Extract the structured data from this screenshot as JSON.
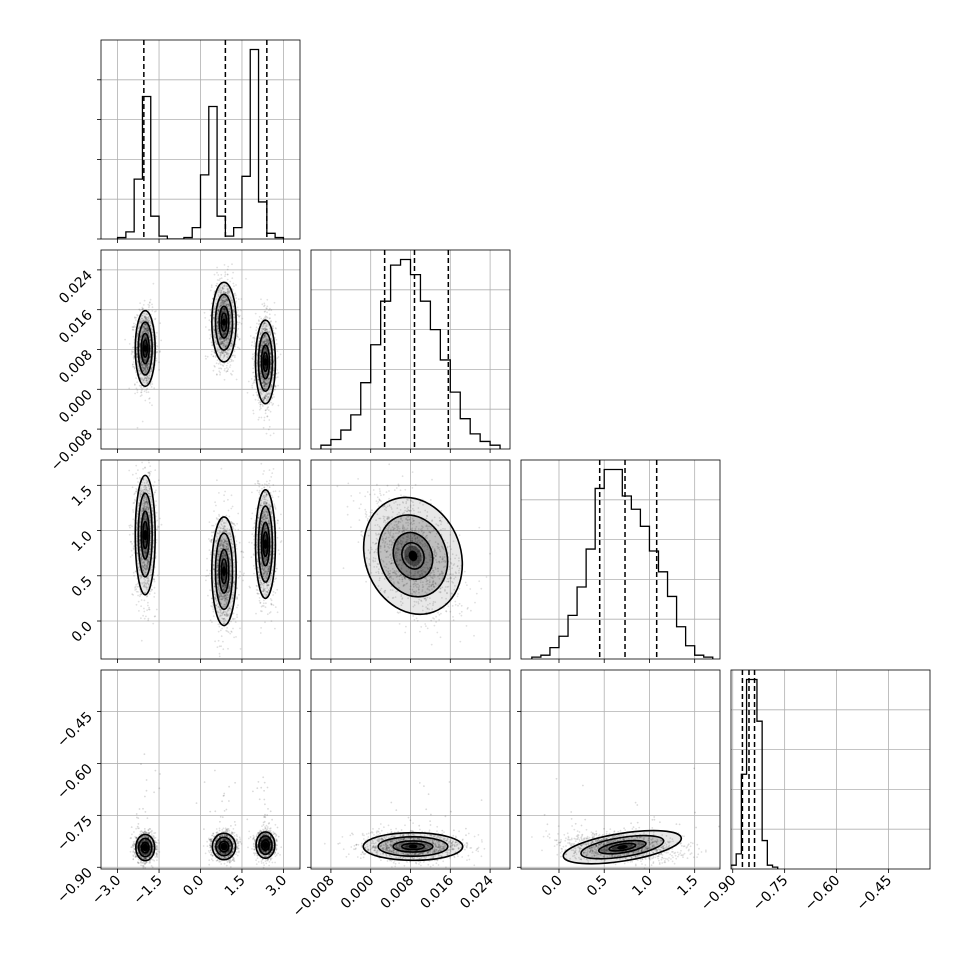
{
  "chart_data": {
    "type": "corner",
    "title": "",
    "grid": true,
    "variables": [
      {
        "label": "",
        "range": [
          -3.6,
          3.6
        ],
        "ticks": [
          -3.0,
          -1.5,
          0.0,
          1.5,
          3.0
        ],
        "tick_labels": [
          "−3.0",
          "−1.5",
          "0.0",
          "1.5",
          "3.0"
        ]
      },
      {
        "label": "",
        "range": [
          -0.012,
          0.028
        ],
        "ticks": [
          -0.008,
          0.0,
          0.008,
          0.016,
          0.024
        ],
        "tick_labels": [
          "−0.008",
          "0.000",
          "0.008",
          "0.016",
          "0.024"
        ]
      },
      {
        "label": "",
        "range": [
          -0.42,
          1.78
        ],
        "ticks": [
          0.0,
          0.5,
          1.0,
          1.5
        ],
        "tick_labels": [
          "0.0",
          "0.5",
          "1.0",
          "1.5"
        ]
      },
      {
        "label": "",
        "range": [
          -0.905,
          -0.33
        ],
        "ticks": [
          -0.9,
          -0.75,
          -0.6,
          -0.45
        ],
        "tick_labels": [
          "−0.90",
          "−0.75",
          "−0.60",
          "−0.45"
        ]
      }
    ],
    "histograms": [
      {
        "bin_edges": [
          -3.0,
          -2.7,
          -2.4,
          -2.1,
          -1.8,
          -1.5,
          -1.2,
          -0.9,
          -0.6,
          -0.3,
          0.0,
          0.3,
          0.6,
          0.9,
          1.2,
          1.5,
          1.8,
          2.1,
          2.4,
          2.7,
          3.0
        ],
        "counts": [
          0.01,
          0.05,
          0.42,
          1.0,
          0.16,
          0.02,
          0.0,
          0.0,
          0.01,
          0.08,
          0.45,
          0.93,
          0.16,
          0.02,
          0.08,
          0.44,
          1.33,
          0.26,
          0.04,
          0.01
        ],
        "quantiles": [
          -2.05,
          0.9,
          2.4
        ]
      },
      {
        "bin_edges": [
          -0.01,
          -0.008,
          -0.006,
          -0.004,
          -0.002,
          0.0,
          0.002,
          0.004,
          0.006,
          0.008,
          0.01,
          0.012,
          0.014,
          0.016,
          0.018,
          0.02,
          0.022,
          0.024,
          0.026
        ],
        "counts": [
          0.02,
          0.05,
          0.1,
          0.18,
          0.35,
          0.55,
          0.78,
          0.97,
          1.0,
          0.92,
          0.78,
          0.63,
          0.47,
          0.3,
          0.16,
          0.08,
          0.04,
          0.02
        ],
        "quantiles": [
          0.0028,
          0.0088,
          0.0156
        ]
      },
      {
        "bin_edges": [
          -0.3,
          -0.2,
          -0.1,
          0.0,
          0.1,
          0.2,
          0.3,
          0.4,
          0.5,
          0.6,
          0.7,
          0.8,
          0.9,
          1.0,
          1.1,
          1.2,
          1.3,
          1.4,
          1.5,
          1.6,
          1.7
        ],
        "counts": [
          0.01,
          0.02,
          0.06,
          0.12,
          0.23,
          0.38,
          0.58,
          0.9,
          1.0,
          1.0,
          0.86,
          0.79,
          0.7,
          0.57,
          0.46,
          0.33,
          0.17,
          0.07,
          0.02,
          0.01
        ],
        "quantiles": [
          0.45,
          0.73,
          1.08
        ]
      },
      {
        "bin_edges": [
          -0.905,
          -0.89,
          -0.875,
          -0.86,
          -0.845,
          -0.83,
          -0.815,
          -0.8,
          -0.785,
          -0.77
        ],
        "counts": [
          0.02,
          0.08,
          0.5,
          1.0,
          1.0,
          0.78,
          0.15,
          0.02,
          0.01
        ],
        "quantiles": [
          -0.872,
          -0.853,
          -0.837
        ]
      }
    ],
    "scatter_clusters": [
      {
        "i": 1,
        "j": 0,
        "blobs": [
          {
            "mx": -2.0,
            "my": 0.0082,
            "sx": 0.18,
            "sy": 0.0038
          },
          {
            "mx": 0.85,
            "my": 0.0135,
            "sx": 0.22,
            "sy": 0.004
          },
          {
            "mx": 2.35,
            "my": 0.0055,
            "sx": 0.18,
            "sy": 0.0042
          }
        ]
      },
      {
        "i": 2,
        "j": 0,
        "blobs": [
          {
            "mx": -2.0,
            "my": 0.95,
            "sx": 0.18,
            "sy": 0.33
          },
          {
            "mx": 0.85,
            "my": 0.55,
            "sx": 0.22,
            "sy": 0.3
          },
          {
            "mx": 2.35,
            "my": 0.85,
            "sx": 0.18,
            "sy": 0.3
          }
        ]
      },
      {
        "i": 2,
        "j": 1,
        "blobs": [
          {
            "mx": 0.0085,
            "my": 0.72,
            "sx": 0.0048,
            "sy": 0.33,
            "rho": -0.45
          }
        ]
      },
      {
        "i": 3,
        "j": 0,
        "blobs": [
          {
            "mx": -2.0,
            "my": -0.843,
            "sx": 0.17,
            "sy": 0.019
          },
          {
            "mx": 0.85,
            "my": -0.84,
            "sx": 0.21,
            "sy": 0.019
          },
          {
            "mx": 2.35,
            "my": -0.836,
            "sx": 0.17,
            "sy": 0.019
          }
        ]
      },
      {
        "i": 3,
        "j": 1,
        "blobs": [
          {
            "mx": 0.0085,
            "my": -0.84,
            "sx": 0.005,
            "sy": 0.02
          }
        ]
      },
      {
        "i": 3,
        "j": 2,
        "blobs": [
          {
            "mx": 0.7,
            "my": -0.842,
            "sx": 0.33,
            "sy": 0.02,
            "rho": -0.2
          }
        ]
      }
    ]
  }
}
